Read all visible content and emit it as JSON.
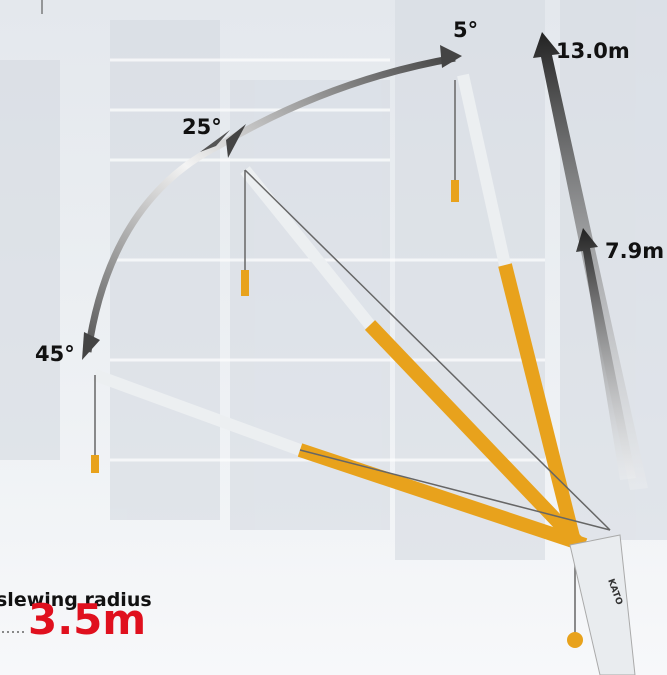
{
  "angles": [
    "5°",
    "25°",
    "45°"
  ],
  "heights": [
    "13.0m",
    "7.9m"
  ],
  "slewing_radius": {
    "label": "slewing radius",
    "value": "3.5m"
  },
  "brand": "KATO"
}
